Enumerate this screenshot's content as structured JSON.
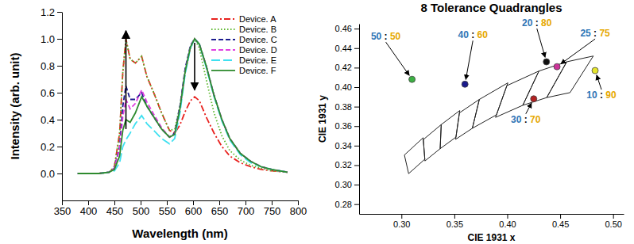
{
  "chart_data": [
    {
      "type": "line",
      "xlabel": "Wavelength (nm)",
      "ylabel": "Intensity (arb. unit)",
      "xlim": [
        350,
        800
      ],
      "xticks": [
        350,
        400,
        450,
        500,
        550,
        600,
        650,
        700,
        750,
        800
      ],
      "ylim": [
        -0.2,
        1.2
      ],
      "yticks": [
        {
          "value": 0,
          "label": "0.0"
        },
        0.2,
        0.4,
        0.6,
        0.8,
        {
          "value": 1,
          "label": "1.0"
        },
        1.2
      ],
      "legend": "upper right",
      "x": [
        380,
        420,
        440,
        450,
        460,
        466,
        472,
        480,
        490,
        502,
        512,
        525,
        540,
        555,
        565,
        575,
        585,
        595,
        603,
        612,
        625,
        640,
        655,
        670,
        690,
        710,
        730,
        750,
        780
      ],
      "series": [
        {
          "name": "Device. A",
          "color": "#e8211e",
          "line_style": "dash-dot",
          "values": [
            0,
            0,
            0.01,
            0.05,
            0.3,
            0.75,
            1.0,
            0.85,
            0.82,
            0.87,
            0.72,
            0.6,
            0.45,
            0.32,
            0.3,
            0.36,
            0.46,
            0.54,
            0.57,
            0.54,
            0.42,
            0.3,
            0.2,
            0.13,
            0.08,
            0.05,
            0.03,
            0.02,
            0.01
          ]
        },
        {
          "name": "Device. B",
          "color": "#5cb82e",
          "line_style": "dotted",
          "values": [
            0,
            0,
            0.01,
            0.05,
            0.3,
            0.75,
            1.0,
            0.85,
            0.82,
            0.87,
            0.72,
            0.6,
            0.45,
            0.32,
            0.33,
            0.5,
            0.75,
            0.93,
            1.0,
            0.93,
            0.7,
            0.45,
            0.28,
            0.17,
            0.1,
            0.06,
            0.04,
            0.02,
            0.01
          ]
        },
        {
          "name": "Device. C",
          "color": "#1c1c8f",
          "line_style": "dashed",
          "values": [
            0,
            0,
            0.01,
            0.04,
            0.2,
            0.5,
            0.65,
            0.55,
            0.55,
            0.6,
            0.5,
            0.42,
            0.33,
            0.27,
            0.3,
            0.5,
            0.78,
            0.95,
            1.0,
            0.96,
            0.8,
            0.58,
            0.4,
            0.26,
            0.15,
            0.09,
            0.05,
            0.03,
            0.01
          ]
        },
        {
          "name": "Device. D",
          "color": "#e040e0",
          "line_style": "dashed",
          "values": [
            0,
            0,
            0.01,
            0.04,
            0.18,
            0.42,
            0.55,
            0.48,
            0.52,
            0.62,
            0.53,
            0.44,
            0.34,
            0.27,
            0.29,
            0.48,
            0.76,
            0.94,
            1.0,
            0.96,
            0.8,
            0.58,
            0.4,
            0.26,
            0.15,
            0.09,
            0.05,
            0.03,
            0.01
          ]
        },
        {
          "name": "Device. E",
          "color": "#3fe0f0",
          "line_style": "long-dash",
          "values": [
            0,
            0,
            0.01,
            0.02,
            0.08,
            0.2,
            0.25,
            0.3,
            0.37,
            0.43,
            0.37,
            0.32,
            0.26,
            0.22,
            0.26,
            0.45,
            0.74,
            0.93,
            1.0,
            0.96,
            0.79,
            0.57,
            0.39,
            0.25,
            0.14,
            0.08,
            0.05,
            0.03,
            0.01
          ]
        },
        {
          "name": "Device. F",
          "color": "#2e8b2e",
          "line_style": "solid",
          "values": [
            0,
            0,
            0.01,
            0.03,
            0.13,
            0.32,
            0.4,
            0.38,
            0.45,
            0.57,
            0.5,
            0.42,
            0.33,
            0.27,
            0.29,
            0.48,
            0.76,
            0.94,
            1.0,
            0.96,
            0.8,
            0.58,
            0.4,
            0.26,
            0.15,
            0.09,
            0.05,
            0.03,
            0.01
          ]
        }
      ],
      "arrows": [
        {
          "x": 472,
          "y": [
            0.33,
            1.06
          ]
        },
        {
          "x": 603,
          "y": [
            0.97,
            0.62
          ]
        }
      ]
    },
    {
      "type": "scatter",
      "title": "8 Tolerance Quadrangles",
      "xlabel": "CIE 1931 x",
      "ylabel": "CIE 1931 y",
      "xlim": [
        0.26,
        0.51
      ],
      "xticks": [
        {
          "value": 0.3,
          "label": "0.30"
        },
        0.35,
        {
          "value": 0.4,
          "label": "0.40"
        },
        0.45,
        {
          "value": 0.5,
          "label": "0.50"
        }
      ],
      "ylim": [
        0.27,
        0.465
      ],
      "yticks": [
        0.28,
        {
          "value": 0.3,
          "label": "0.30"
        },
        0.32,
        0.34,
        0.36,
        0.38,
        {
          "value": 0.4,
          "label": "0.40"
        },
        0.42,
        0.44,
        0.46
      ],
      "points": [
        {
          "label": "50 : 50",
          "x": 0.31,
          "y": 0.408,
          "color": "#3cb043"
        },
        {
          "label": "40 : 60",
          "x": 0.36,
          "y": 0.403,
          "color": "#1a1a8c"
        },
        {
          "label": "20 : 80",
          "x": 0.437,
          "y": 0.426,
          "color": "#111111"
        },
        {
          "label": "25 : 75",
          "x": 0.447,
          "y": 0.421,
          "color": "#cc3399"
        },
        {
          "label": "30 : 70",
          "x": 0.425,
          "y": 0.388,
          "color": "#b22222"
        },
        {
          "label": "10 : 90",
          "x": 0.483,
          "y": 0.417,
          "color": "#e6e62e"
        }
      ],
      "quadrangles": [
        {
          "x": [
            0.4813,
            0.4562,
            0.4373,
            0.4593
          ],
          "y": [
            0.4319,
            0.426,
            0.3893,
            0.3944
          ]
        },
        {
          "x": [
            0.4562,
            0.4299,
            0.4147,
            0.4373
          ],
          "y": [
            0.426,
            0.4165,
            0.3814,
            0.3893
          ]
        },
        {
          "x": [
            0.4299,
            0.3996,
            0.3889,
            0.4147
          ],
          "y": [
            0.4165,
            0.4015,
            0.369,
            0.3814
          ]
        },
        {
          "x": [
            0.4006,
            0.3736,
            0.367,
            0.3898
          ],
          "y": [
            0.4044,
            0.3874,
            0.3578,
            0.3716
          ]
        },
        {
          "x": [
            0.3736,
            0.3548,
            0.3512,
            0.367
          ],
          "y": [
            0.3874,
            0.3736,
            0.3465,
            0.3578
          ]
        },
        {
          "x": [
            0.3551,
            0.3376,
            0.3366,
            0.3515
          ],
          "y": [
            0.376,
            0.3616,
            0.3369,
            0.3487
          ]
        },
        {
          "x": [
            0.3376,
            0.3207,
            0.3222,
            0.3366
          ],
          "y": [
            0.3616,
            0.3462,
            0.3243,
            0.3369
          ]
        },
        {
          "x": [
            0.3205,
            0.3028,
            0.3068,
            0.3221
          ],
          "y": [
            0.3481,
            0.3304,
            0.3113,
            0.3261
          ]
        }
      ]
    }
  ]
}
